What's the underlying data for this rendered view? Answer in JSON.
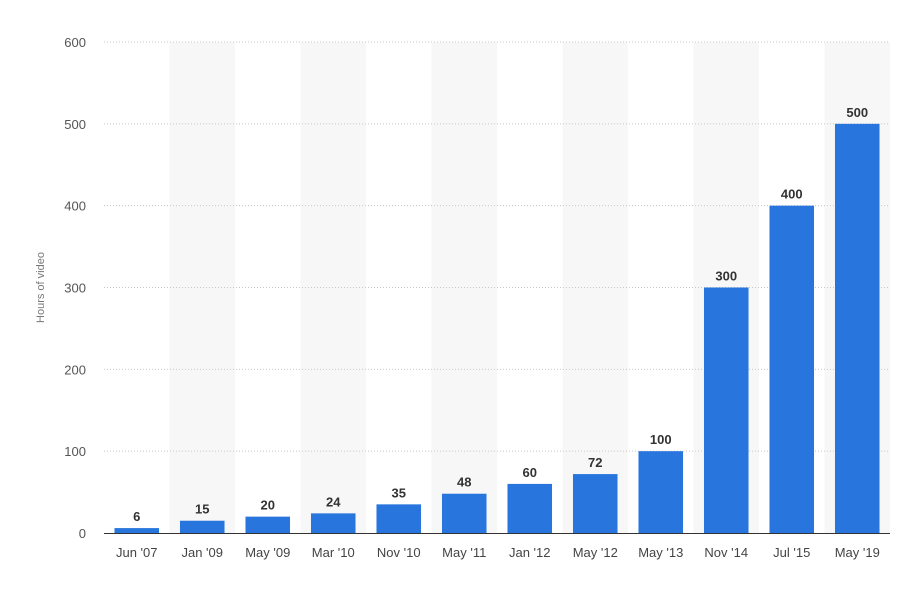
{
  "chart_data": {
    "type": "bar",
    "title": "",
    "xlabel": "",
    "ylabel": "Hours of video",
    "categories": [
      "Jun '07",
      "Jan '09",
      "May '09",
      "Mar '10",
      "Nov '10",
      "May '11",
      "Jan '12",
      "May '12",
      "May '13",
      "Nov '14",
      "Jul '15",
      "May '19"
    ],
    "values": [
      6,
      15,
      20,
      24,
      35,
      48,
      60,
      72,
      100,
      300,
      400,
      500
    ],
    "ylim": [
      0,
      600
    ],
    "yticks": [
      0,
      100,
      200,
      300,
      400,
      500,
      600
    ],
    "grid": "horizontal dotted",
    "bar_color": "#2876dd",
    "band_color": "#f7f7f7",
    "data_labels": true
  }
}
